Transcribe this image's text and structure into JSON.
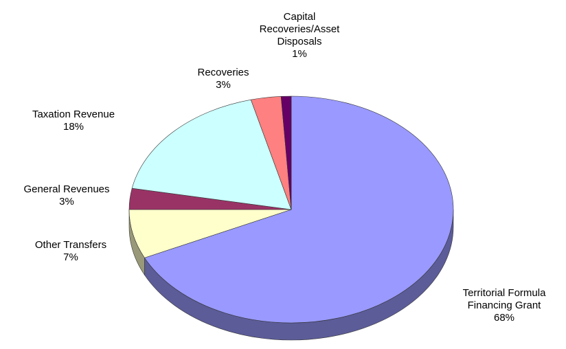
{
  "chart_data": {
    "type": "pie",
    "categories": [
      "Territorial Formula Financing Grant",
      "Other Transfers",
      "General Revenues",
      "Taxation Revenue",
      "Recoveries",
      "Capital Recoveries/Asset Disposals"
    ],
    "values": [
      68,
      7,
      3,
      18,
      3,
      1
    ],
    "value_labels": [
      "68%",
      "7%",
      "3%",
      "18%",
      "3%",
      "1%"
    ],
    "colors": [
      "#9999ff",
      "#ffffcc",
      "#993366",
      "#ccffff",
      "#ff8080",
      "#660066"
    ]
  }
}
